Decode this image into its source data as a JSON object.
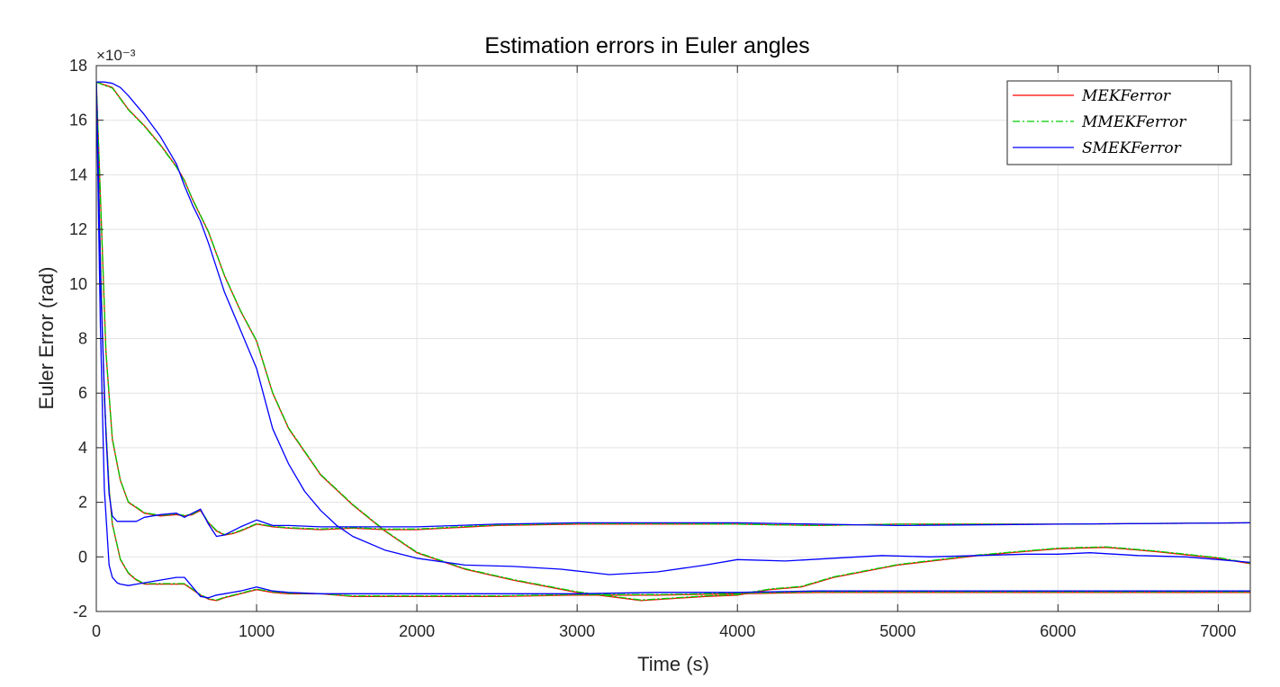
{
  "chart_data": {
    "type": "line",
    "title": "Estimation errors in Euler angles",
    "xlabel": "Time (s)",
    "ylabel": "Euler Error (rad)",
    "y_exponent_label": "×10⁻³",
    "y_scale_factor": 0.001,
    "xlim": [
      0,
      7200
    ],
    "ylim": [
      -2,
      18
    ],
    "x_ticks": [
      0,
      1000,
      2000,
      3000,
      4000,
      5000,
      6000,
      7000
    ],
    "y_ticks": [
      -2,
      0,
      2,
      4,
      6,
      8,
      10,
      12,
      14,
      16,
      18
    ],
    "x_tick_labels": [
      "0",
      "1000",
      "2000",
      "3000",
      "4000",
      "5000",
      "6000",
      "7000"
    ],
    "y_tick_labels": [
      "-2",
      "0",
      "2",
      "4",
      "6",
      "8",
      "10",
      "12",
      "14",
      "16",
      "18"
    ],
    "grid": true,
    "legend_position": "top-right",
    "colors": {
      "MEKFerror": "#ff0000",
      "MMEKFerror": "#00cc00",
      "SMEKFerror": "#0000ff"
    },
    "series": [
      {
        "name": "MEKFerror",
        "components": [
          {
            "x": [
              0,
              50,
              100,
              150,
              200,
              300,
              400,
              500,
              550,
              600,
              650,
              700,
              800,
              900,
              1000,
              1100,
              1200,
              1400,
              1600,
              1800,
              2000,
              2300,
              2600,
              3000,
              3400,
              3800,
              4000,
              4200,
              4400,
              4600,
              5000,
              5500,
              6000,
              6300,
              6600,
              7000,
              7200
            ],
            "y": [
              17.4,
              17.3,
              17.2,
              16.8,
              16.4,
              15.8,
              15.1,
              14.3,
              13.8,
              13.1,
              12.5,
              11.9,
              10.3,
              9.0,
              7.9,
              6.0,
              4.7,
              3.0,
              1.9,
              0.95,
              0.15,
              -0.45,
              -0.85,
              -1.3,
              -1.6,
              -1.45,
              -1.4,
              -1.2,
              -1.1,
              -0.75,
              -0.3,
              0.05,
              0.3,
              0.35,
              0.2,
              -0.05,
              -0.25
            ]
          },
          {
            "x": [
              0,
              30,
              60,
              100,
              150,
              200,
              300,
              400,
              500,
              550,
              600,
              650,
              700,
              750,
              800,
              850,
              900,
              1000,
              1100,
              1200,
              1400,
              1600,
              1800,
              2000,
              2500,
              3000,
              3500,
              4000,
              4500,
              5000,
              6000,
              7200
            ],
            "y": [
              17.4,
              12.5,
              7.5,
              4.3,
              2.8,
              2.0,
              1.6,
              1.5,
              1.55,
              1.5,
              1.55,
              1.7,
              1.25,
              0.95,
              0.8,
              0.85,
              0.95,
              1.2,
              1.1,
              1.05,
              1.0,
              1.05,
              1.0,
              1.0,
              1.15,
              1.2,
              1.2,
              1.2,
              1.15,
              1.2,
              1.2,
              1.25
            ]
          },
          {
            "x": [
              0,
              25,
              50,
              80,
              100,
              150,
              200,
              250,
              300,
              400,
              500,
              550,
              600,
              650,
              700,
              750,
              800,
              900,
              1000,
              1100,
              1200,
              1400,
              1600,
              2000,
              2500,
              3000,
              3500,
              4000,
              4500,
              5000,
              6000,
              7200
            ],
            "y": [
              17.4,
              11.0,
              5.8,
              2.5,
              1.2,
              -0.1,
              -0.6,
              -0.85,
              -1.0,
              -1.0,
              -1.0,
              -1.0,
              -1.2,
              -1.4,
              -1.55,
              -1.6,
              -1.5,
              -1.35,
              -1.2,
              -1.3,
              -1.35,
              -1.35,
              -1.45,
              -1.45,
              -1.45,
              -1.4,
              -1.4,
              -1.35,
              -1.3,
              -1.3,
              -1.3,
              -1.3
            ]
          }
        ]
      },
      {
        "name": "MMEKFerror",
        "components": [
          {
            "x": [
              0,
              50,
              100,
              150,
              200,
              300,
              400,
              500,
              550,
              600,
              650,
              700,
              800,
              900,
              1000,
              1100,
              1200,
              1400,
              1600,
              1800,
              2000,
              2300,
              2600,
              3000,
              3400,
              3800,
              4000,
              4200,
              4400,
              4600,
              5000,
              5500,
              6000,
              6300,
              6600,
              7000,
              7200
            ],
            "y": [
              17.4,
              17.28,
              17.18,
              16.78,
              16.38,
              15.78,
              15.08,
              14.28,
              13.78,
              13.12,
              12.52,
              11.92,
              10.32,
              9.02,
              7.92,
              6.02,
              4.72,
              3.02,
              1.92,
              0.97,
              0.17,
              -0.43,
              -0.83,
              -1.28,
              -1.58,
              -1.43,
              -1.38,
              -1.18,
              -1.08,
              -0.73,
              -0.28,
              0.07,
              0.32,
              0.37,
              0.22,
              -0.03,
              -0.23
            ]
          },
          {
            "x": [
              0,
              30,
              60,
              100,
              150,
              200,
              300,
              400,
              500,
              550,
              600,
              650,
              700,
              750,
              800,
              850,
              900,
              1000,
              1100,
              1200,
              1400,
              1600,
              1800,
              2000,
              2500,
              3000,
              3500,
              4000,
              4500,
              5000,
              6000,
              7200
            ],
            "y": [
              17.4,
              12.55,
              7.55,
              4.35,
              2.82,
              2.02,
              1.62,
              1.52,
              1.57,
              1.52,
              1.57,
              1.72,
              1.27,
              0.97,
              0.82,
              0.87,
              0.97,
              1.22,
              1.12,
              1.07,
              1.02,
              1.07,
              1.02,
              1.02,
              1.17,
              1.22,
              1.22,
              1.2,
              1.15,
              1.2,
              1.2,
              1.25
            ]
          },
          {
            "x": [
              0,
              25,
              50,
              80,
              100,
              150,
              200,
              250,
              300,
              400,
              500,
              550,
              600,
              650,
              700,
              750,
              800,
              900,
              1000,
              1100,
              1200,
              1400,
              1600,
              2000,
              2500,
              3000,
              3500,
              4000,
              4500,
              5000,
              6000,
              7200
            ],
            "y": [
              17.4,
              11.05,
              5.85,
              2.55,
              1.22,
              -0.08,
              -0.58,
              -0.83,
              -0.98,
              -0.98,
              -0.98,
              -0.98,
              -1.18,
              -1.38,
              -1.53,
              -1.58,
              -1.48,
              -1.33,
              -1.18,
              -1.28,
              -1.33,
              -1.35,
              -1.43,
              -1.43,
              -1.43,
              -1.38,
              -1.38,
              -1.33,
              -1.28,
              -1.28,
              -1.28,
              -1.28
            ]
          }
        ]
      },
      {
        "name": "SMEKFerror",
        "components": [
          {
            "x": [
              0,
              50,
              100,
              150,
              200,
              300,
              400,
              500,
              550,
              600,
              650,
              700,
              800,
              900,
              1000,
              1100,
              1200,
              1300,
              1400,
              1500,
              1600,
              1800,
              2000,
              2300,
              2600,
              2900,
              3200,
              3500,
              3800,
              4000,
              4300,
              4600,
              4900,
              5200,
              5500,
              5800,
              6000,
              6200,
              6500,
              6800,
              7000,
              7200
            ],
            "y": [
              17.4,
              17.4,
              17.35,
              17.2,
              16.9,
              16.2,
              15.4,
              14.4,
              13.6,
              12.9,
              12.3,
              11.5,
              9.7,
              8.3,
              6.9,
              4.7,
              3.4,
              2.4,
              1.7,
              1.15,
              0.75,
              0.25,
              -0.05,
              -0.3,
              -0.35,
              -0.45,
              -0.65,
              -0.55,
              -0.3,
              -0.1,
              -0.15,
              -0.05,
              0.05,
              0.0,
              0.05,
              0.1,
              0.1,
              0.15,
              0.05,
              0.0,
              -0.1,
              -0.2
            ]
          },
          {
            "x": [
              0,
              30,
              60,
              80,
              100,
              130,
              150,
              200,
              250,
              300,
              400,
              500,
              550,
              600,
              650,
              700,
              750,
              800,
              900,
              1000,
              1100,
              1200,
              1400,
              1600,
              1800,
              2000,
              2500,
              3000,
              3500,
              4000,
              4500,
              5000,
              6000,
              7200
            ],
            "y": [
              17.4,
              9.5,
              4.5,
              2.3,
              1.5,
              1.3,
              1.3,
              1.3,
              1.3,
              1.45,
              1.55,
              1.6,
              1.45,
              1.6,
              1.75,
              1.2,
              0.75,
              0.8,
              1.1,
              1.35,
              1.15,
              1.15,
              1.1,
              1.1,
              1.1,
              1.1,
              1.2,
              1.25,
              1.25,
              1.25,
              1.2,
              1.15,
              1.2,
              1.25
            ]
          },
          {
            "x": [
              0,
              25,
              50,
              80,
              100,
              130,
              150,
              200,
              250,
              300,
              400,
              500,
              550,
              600,
              650,
              700,
              750,
              800,
              900,
              1000,
              1100,
              1200,
              1400,
              1600,
              2000,
              2500,
              3000,
              3500,
              4000,
              4500,
              5000,
              6000,
              7200
            ],
            "y": [
              17.4,
              8.5,
              2.5,
              -0.3,
              -0.75,
              -0.95,
              -1.0,
              -1.05,
              -1.0,
              -0.95,
              -0.85,
              -0.75,
              -0.75,
              -1.1,
              -1.45,
              -1.5,
              -1.4,
              -1.35,
              -1.25,
              -1.1,
              -1.25,
              -1.3,
              -1.35,
              -1.35,
              -1.35,
              -1.35,
              -1.35,
              -1.3,
              -1.3,
              -1.25,
              -1.25,
              -1.25,
              -1.25
            ]
          }
        ]
      }
    ]
  }
}
